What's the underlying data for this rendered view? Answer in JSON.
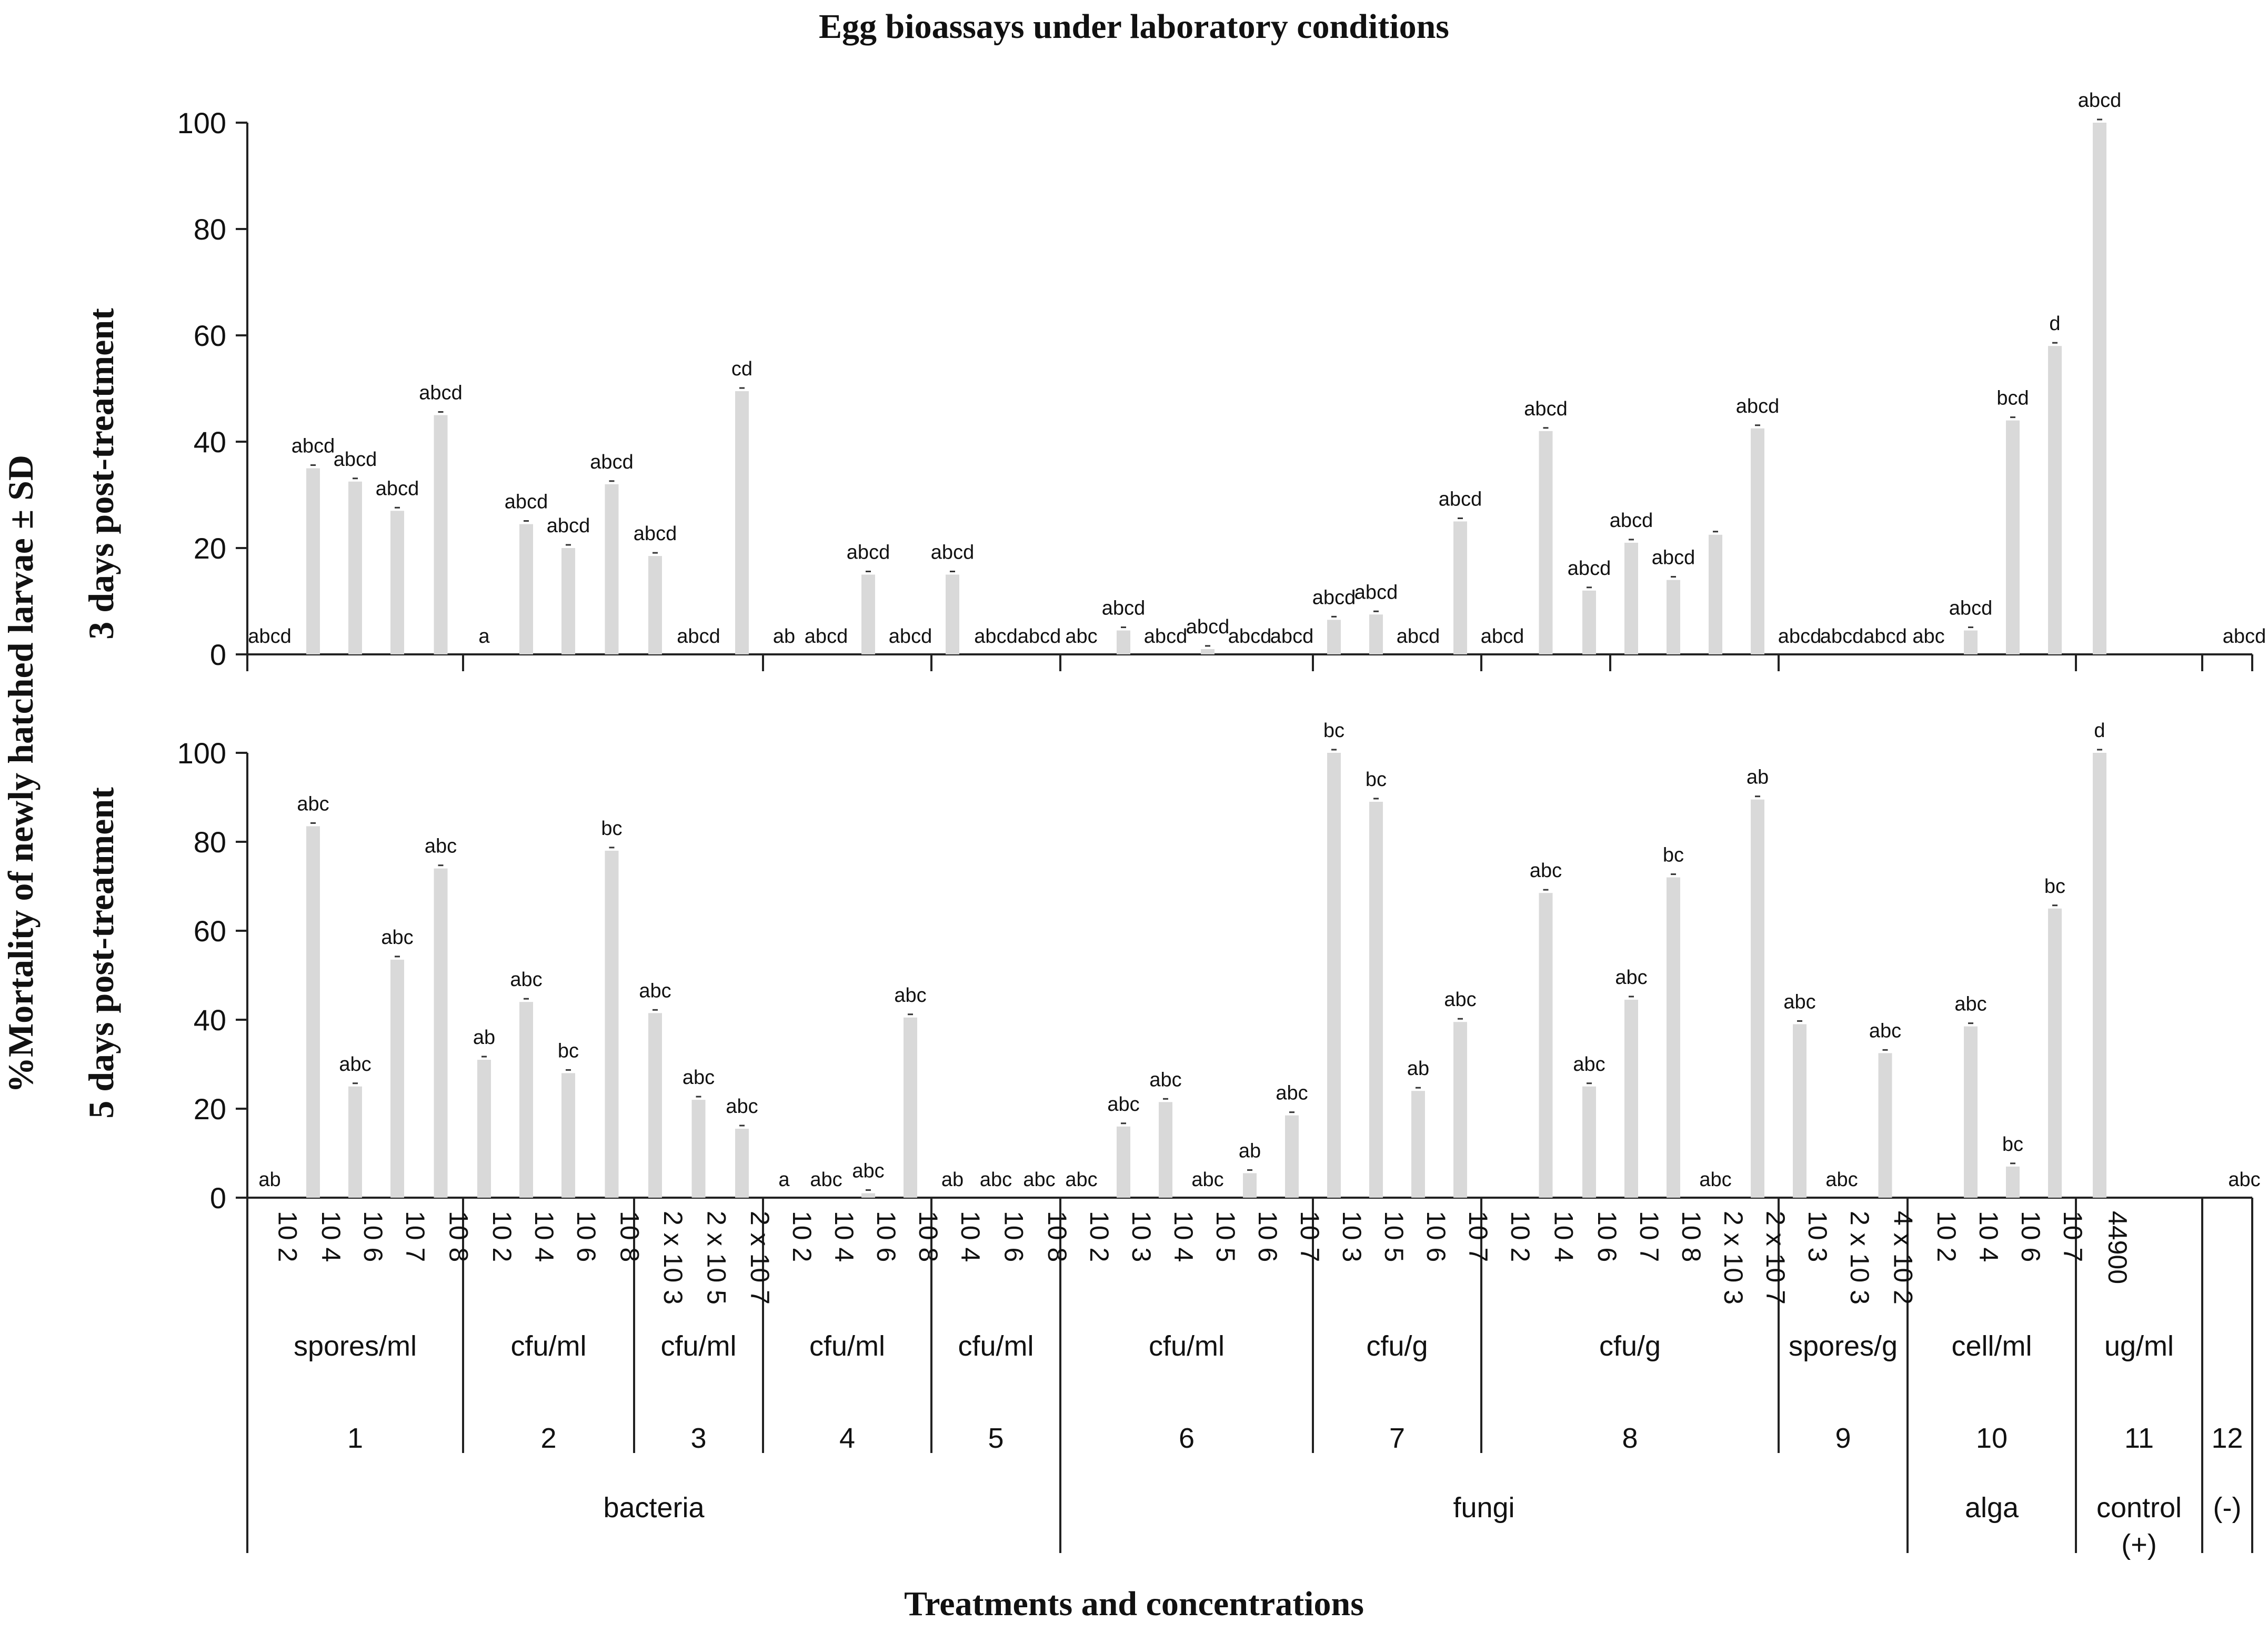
{
  "chart_data": {
    "type": "bar",
    "title": "Egg bioassays under laboratory conditions",
    "ylabel": "%Mortality of newly hatched larvae ± SD",
    "xlabel": "Treatments and concentrations",
    "categories": [
      "10 2",
      "10 4",
      "10 6",
      "10 7",
      "10 8",
      "10 2",
      "10 4",
      "10 6",
      "10 8",
      "2 x 10 3",
      "2 x 10 5",
      "2 x 10 7",
      "10 2",
      "10 4",
      "10 6",
      "10 8",
      "10 4",
      "10 6",
      "10 8",
      "10 2",
      "10 3",
      "10 4",
      "10 5",
      "10 6",
      "10 7",
      "10 3",
      "10 5",
      "10 6",
      "10 7",
      "10 2",
      "10 4",
      "10 6",
      "10 7",
      "10 8",
      "2 x 10 3",
      "2 x 10 7",
      "10 3",
      "2 x 10 3",
      "4 x 10 2",
      "10 2",
      "10 4",
      "10 6",
      "10 7",
      "44900",
      ""
    ],
    "units_groups": [
      {
        "label": "spores/ml",
        "start": 0,
        "end": 4
      },
      {
        "label": "cfu/ml",
        "start": 5,
        "end": 8
      },
      {
        "label": "cfu/ml",
        "start": 9,
        "end": 11
      },
      {
        "label": "cfu/ml",
        "start": 12,
        "end": 15
      },
      {
        "label": "cfu/ml",
        "start": 16,
        "end": 18
      },
      {
        "label": "cfu/ml",
        "start": 19,
        "end": 24
      },
      {
        "label": "cfu/g",
        "start": 25,
        "end": 28
      },
      {
        "label": "cfu/g",
        "start": 29,
        "end": 35
      },
      {
        "label": "spores/g",
        "start": 36,
        "end": 38
      },
      {
        "label": "cell/ml",
        "start": 39,
        "end": 42
      },
      {
        "label": "ug/ml",
        "start": 43,
        "end": 43
      }
    ],
    "treatment_groups": [
      {
        "label": "1",
        "start": 0,
        "end": 4
      },
      {
        "label": "2",
        "start": 5,
        "end": 8
      },
      {
        "label": "3",
        "start": 9,
        "end": 11
      },
      {
        "label": "4",
        "start": 12,
        "end": 15
      },
      {
        "label": "5",
        "start": 16,
        "end": 18
      },
      {
        "label": "6",
        "start": 19,
        "end": 24
      },
      {
        "label": "7",
        "start": 25,
        "end": 28
      },
      {
        "label": "8",
        "start": 29,
        "end": 35
      },
      {
        "label": "9",
        "start": 36,
        "end": 38
      },
      {
        "label": "10",
        "start": 39,
        "end": 42
      },
      {
        "label": "11",
        "start": 43,
        "end": 43
      },
      {
        "label": "12",
        "start": 44,
        "end": 44
      }
    ],
    "type_groups": [
      {
        "label": "bacteria",
        "start": 0,
        "end": 18
      },
      {
        "label": "fungi",
        "start": 19,
        "end": 38
      },
      {
        "label": "alga",
        "start": 39,
        "end": 42
      },
      {
        "label": "control",
        "label2": "(+)",
        "start": 43,
        "end": 43
      },
      {
        "label": "(-)",
        "start": 44,
        "end": 44
      }
    ],
    "panels": [
      {
        "ylabel": "3 days post-treatment",
        "ylim": [
          0,
          100
        ],
        "yticks": [
          0,
          20,
          40,
          60,
          80,
          100
        ],
        "values": [
          0,
          35,
          32.5,
          27,
          45,
          0,
          24.5,
          20,
          32,
          18.5,
          0,
          49.5,
          0,
          0,
          15,
          0,
          15,
          0,
          0,
          0,
          4.5,
          0,
          1,
          0,
          0,
          6.5,
          7.5,
          0,
          25,
          0,
          42,
          12,
          21,
          14,
          22.5,
          42.5,
          0,
          0,
          0,
          0,
          4.5,
          44,
          58,
          100,
          0
        ],
        "labels": [
          "abcd",
          "abcd",
          "abcd",
          "abcd",
          "abcd",
          "a",
          "abcd",
          "abcd",
          "abcd",
          "abcd",
          "abcd",
          "cd",
          "ab",
          "abcd",
          "abcd",
          "abcd",
          "abcd",
          "abcd",
          "abcd",
          "abc",
          "abcd",
          "abcd",
          "abcd",
          "abcd",
          "abcd",
          "abcd",
          "abcd",
          "abcd",
          "abcd",
          "abcd",
          "abcd",
          "abcd",
          "abcd",
          "abcd",
          "",
          "abcd",
          "abcd",
          "abcd",
          "abcd",
          "abc",
          "abcd",
          "bcd",
          "d",
          "abcd",
          "abcd"
        ]
      },
      {
        "ylabel": "5 days post-treatment",
        "ylim": [
          0,
          100
        ],
        "yticks": [
          0,
          20,
          40,
          60,
          80,
          100
        ],
        "values": [
          0,
          83.5,
          25,
          53.5,
          74,
          31,
          44,
          28,
          78,
          41.5,
          22,
          15.5,
          0,
          0,
          1,
          40.5,
          0,
          0,
          0,
          0,
          16,
          21.5,
          0,
          5.5,
          18.5,
          100,
          89,
          24,
          39.5,
          0,
          68.5,
          25,
          44.5,
          72,
          0,
          89.5,
          39,
          0,
          32.5,
          0,
          38.5,
          7,
          65,
          100,
          0
        ],
        "labels": [
          "ab",
          "abc",
          "abc",
          "abc",
          "abc",
          "ab",
          "abc",
          "bc",
          "bc",
          "abc",
          "abc",
          "abc",
          "a",
          "abc",
          "abc",
          "abc",
          "ab",
          "abc",
          "abc",
          "abc",
          "abc",
          "abc",
          "abc",
          "ab",
          "abc",
          "bc",
          "bc",
          "ab",
          "abc",
          "",
          "abc",
          "abc",
          "abc",
          "bc",
          "abc",
          "ab",
          "abc",
          "abc",
          "abc",
          "",
          "abc",
          "bc",
          "bc",
          "d",
          "abc"
        ]
      }
    ]
  }
}
